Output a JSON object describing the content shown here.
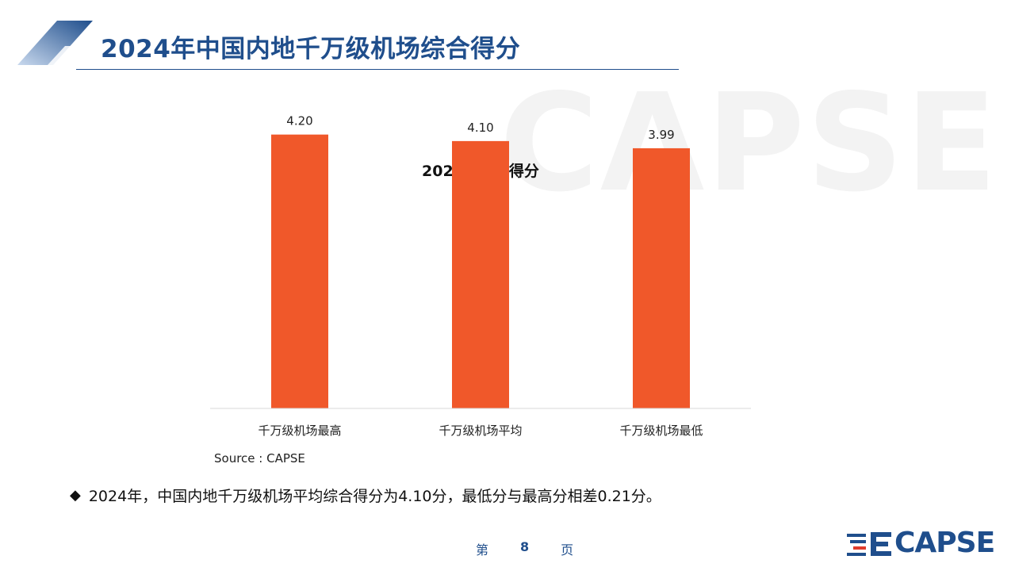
{
  "slide": {
    "title": "2024年中国内地千万级机场综合得分",
    "watermark": "CAPSE",
    "source": "Source : CAPSE",
    "bullet": "2024年，中国内地千万级机场平均综合得分为4.10分，最低分与最高分相差0.21分。",
    "page": {
      "prefix": "第",
      "number": "8",
      "suffix": "页"
    },
    "logo_text": "CAPSE"
  },
  "colors": {
    "bar": "#f0582a",
    "title": "#1f4e8c",
    "axis": "#d9d9d9"
  },
  "chart_data": {
    "type": "bar",
    "title": "2024年综合得分",
    "categories": [
      "千万级机场最高",
      "千万级机场平均",
      "千万级机场最低"
    ],
    "values": [
      4.2,
      4.1,
      3.99
    ],
    "value_labels": [
      "4.20",
      "4.10",
      "3.99"
    ],
    "xlabel": "",
    "ylabel": "",
    "ylim": [
      0,
      4.5
    ],
    "grid": false,
    "legend": "none"
  }
}
